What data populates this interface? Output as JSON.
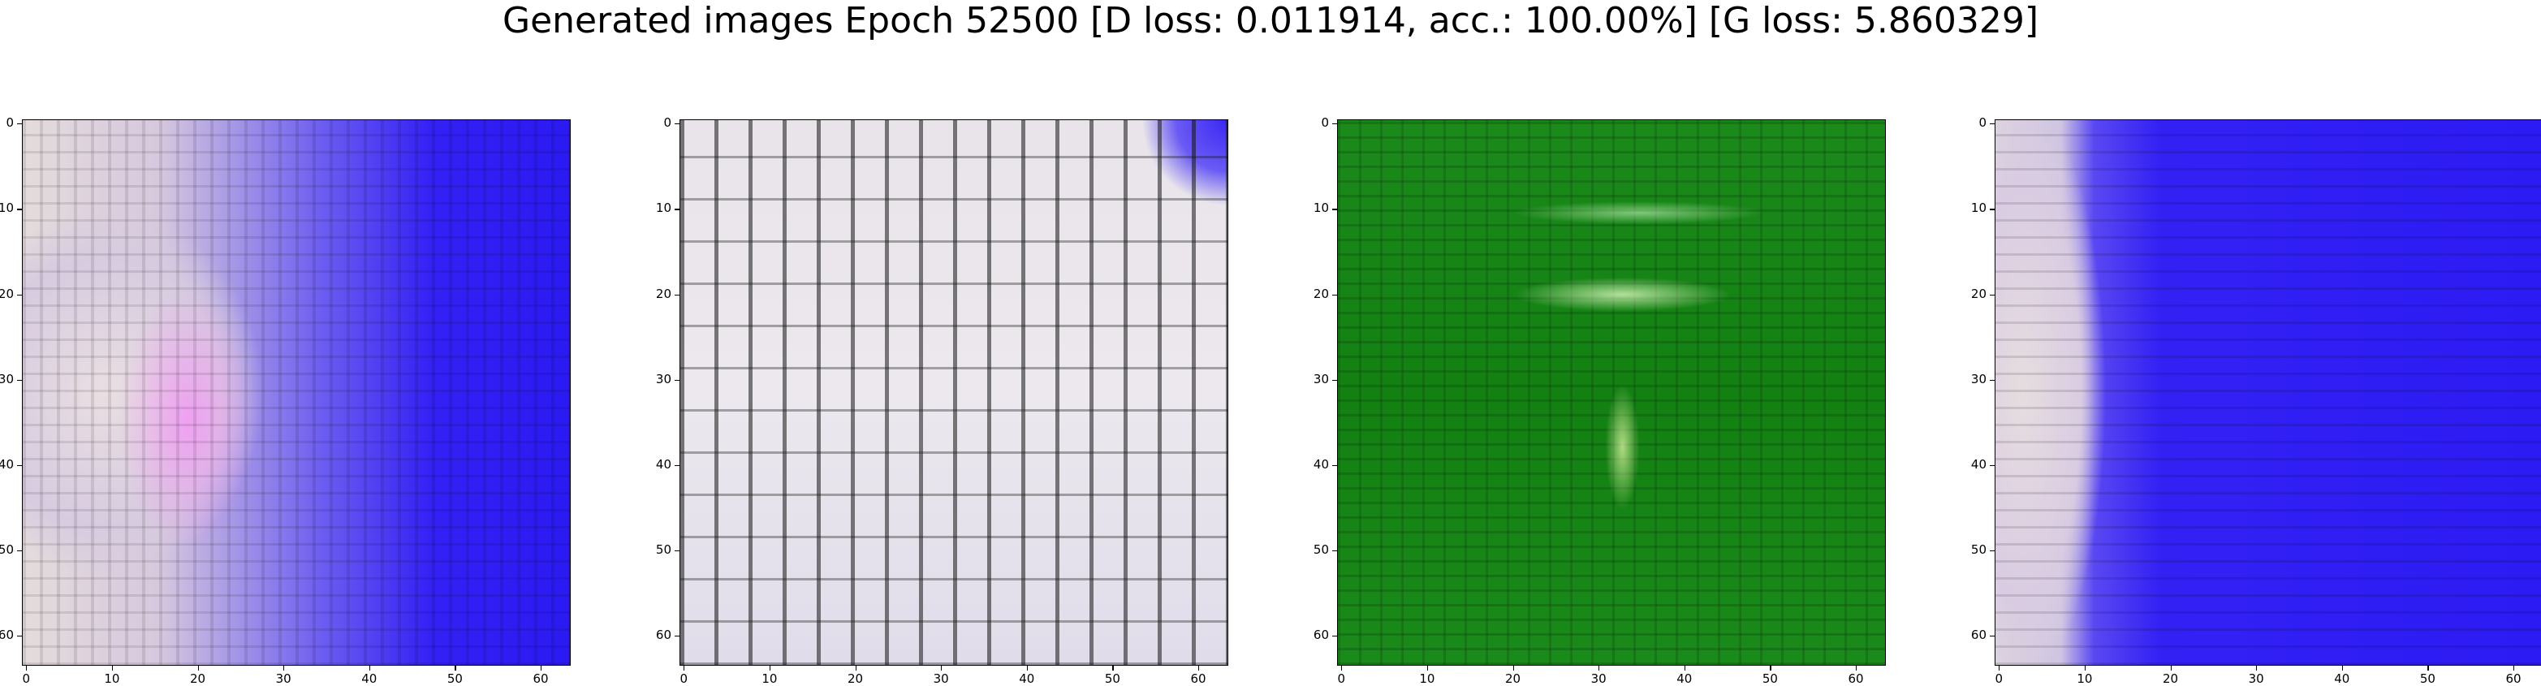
{
  "title": "Generated images Epoch 52500 [D loss: 0.011914, acc.: 100.00%] [G loss: 5.860329]",
  "axes": {
    "yticks": [
      "0",
      "10",
      "20",
      "30",
      "40",
      "50",
      "60"
    ],
    "xticks": [
      "0",
      "10",
      "20",
      "30",
      "40",
      "50",
      "60"
    ],
    "range": [
      0,
      63
    ]
  },
  "panels": [
    {
      "id": "panel-1",
      "dominant_color": "#3320f4",
      "description_color_2": "#e4dcdc"
    },
    {
      "id": "panel-2",
      "dominant_color": "#ece8ee",
      "description_color_2": "#3a28f4"
    },
    {
      "id": "panel-3",
      "dominant_color": "#138012",
      "description_color_2": "#e6ffc8"
    },
    {
      "id": "panel-4",
      "dominant_color": "#2c1bf3",
      "description_color_2": "#e6dde0"
    }
  ]
}
